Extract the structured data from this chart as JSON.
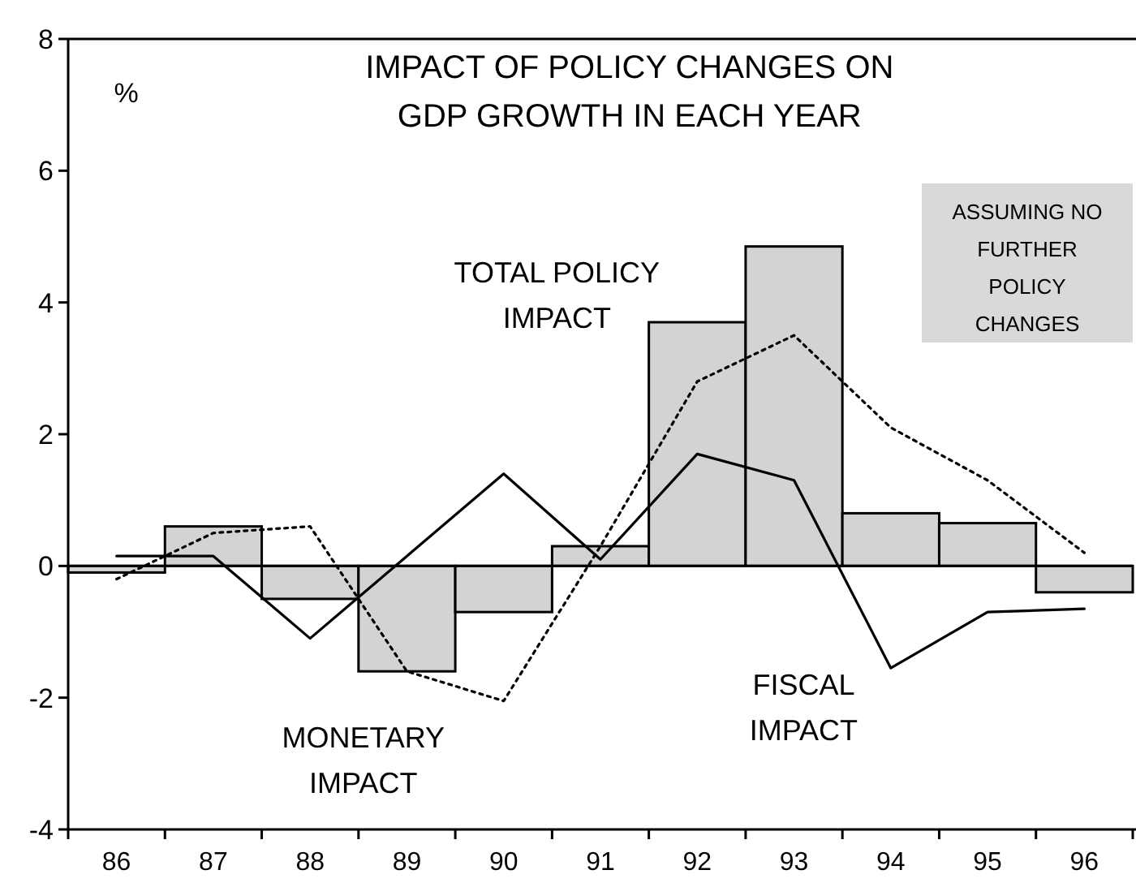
{
  "chart_data": {
    "type": "bar",
    "title": "IMPACT OF POLICY CHANGES ON GDP GROWTH IN EACH YEAR",
    "categories": [
      "86",
      "87",
      "88",
      "89",
      "90",
      "91",
      "92",
      "93",
      "94",
      "95",
      "96"
    ],
    "series": [
      {
        "name": "TOTAL POLICY IMPACT",
        "color": "#d3d3d3",
        "values": [
          -0.1,
          0.6,
          -0.5,
          -1.6,
          -0.7,
          0.3,
          3.7,
          4.85,
          0.8,
          0.65,
          -0.4
        ]
      },
      {
        "name": "FISCAL IMPACT",
        "type": "line",
        "color": "#000000",
        "line_style": "solid",
        "values": [
          0.15,
          0.15,
          -1.1,
          0.15,
          1.4,
          0.1,
          1.7,
          1.3,
          -1.55,
          -0.7,
          -0.65
        ]
      },
      {
        "name": "MONETARY IMPACT",
        "type": "line",
        "color": "#000000",
        "line_style": "dotted",
        "values": [
          -0.2,
          0.5,
          0.6,
          -1.6,
          -2.05,
          0.3,
          2.8,
          3.5,
          2.1,
          1.3,
          0.2
        ]
      }
    ],
    "ylim": [
      -4,
      8
    ],
    "yticks": [
      -4,
      -2,
      0,
      2,
      4,
      6,
      8
    ],
    "legend": false,
    "marker": "none",
    "annotations": [
      "%",
      "ASSUMING NO FURTHER POLICY CHANGES"
    ]
  }
}
